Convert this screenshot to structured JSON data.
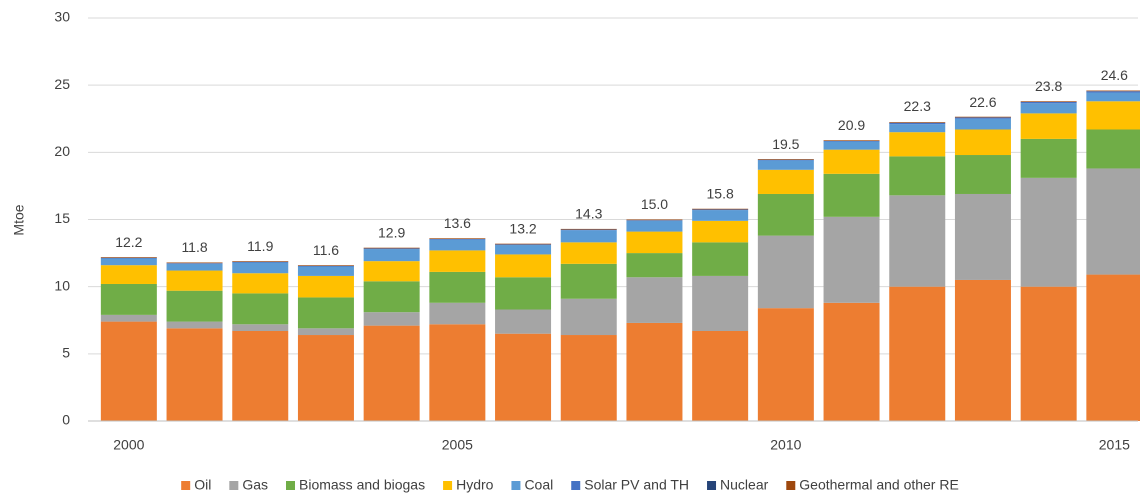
{
  "chart_data": {
    "type": "stacked_bar",
    "ylabel": "Mtoe",
    "categories": [
      "2000",
      null,
      null,
      null,
      null,
      "2005",
      null,
      null,
      null,
      null,
      "2010",
      null,
      null,
      null,
      null,
      "2015"
    ],
    "series": [
      {
        "name": "Oil",
        "color": "#ed7d31",
        "values": [
          7.4,
          6.9,
          6.7,
          6.4,
          7.1,
          7.2,
          6.5,
          6.4,
          7.3,
          6.7,
          8.4,
          8.8,
          10.0,
          10.5,
          10.0,
          10.9
        ]
      },
      {
        "name": "Gas",
        "color": "#a5a5a5",
        "values": [
          0.5,
          0.5,
          0.5,
          0.5,
          1.0,
          1.6,
          1.8,
          2.7,
          3.4,
          4.1,
          5.4,
          6.4,
          6.8,
          6.4,
          8.1,
          7.9
        ]
      },
      {
        "name": "Biomass and biogas",
        "color": "#70ad47",
        "values": [
          2.3,
          2.3,
          2.3,
          2.3,
          2.3,
          2.3,
          2.4,
          2.6,
          1.8,
          2.5,
          3.1,
          3.2,
          2.9,
          2.9,
          2.9,
          2.9
        ]
      },
      {
        "name": "Hydro",
        "color": "#ffc000",
        "values": [
          1.4,
          1.5,
          1.5,
          1.6,
          1.5,
          1.6,
          1.7,
          1.6,
          1.6,
          1.6,
          1.8,
          1.8,
          1.8,
          1.9,
          1.9,
          2.1
        ]
      },
      {
        "name": "Coal",
        "color": "#5b9bd5",
        "values": [
          0.5,
          0.5,
          0.8,
          0.7,
          0.9,
          0.8,
          0.7,
          0.9,
          0.8,
          0.8,
          0.7,
          0.6,
          0.6,
          0.8,
          0.75,
          0.65
        ]
      },
      {
        "name": "Solar PV and TH",
        "color": "#4472c4",
        "values": [
          0.05,
          0.05,
          0.05,
          0.05,
          0.05,
          0.05,
          0.05,
          0.05,
          0.05,
          0.05,
          0.05,
          0.05,
          0.1,
          0.1,
          0.1,
          0.1
        ]
      },
      {
        "name": "Nuclear",
        "color": "#264478",
        "values": [
          0,
          0,
          0,
          0,
          0,
          0,
          0,
          0,
          0,
          0,
          0,
          0,
          0,
          0,
          0,
          0
        ]
      },
      {
        "name": "Geothermal and other RE",
        "color": "#9e480e",
        "values": [
          0.05,
          0.05,
          0.05,
          0.05,
          0.05,
          0.05,
          0.05,
          0.05,
          0.05,
          0.05,
          0.05,
          0.05,
          0.05,
          0.05,
          0.05,
          0.05
        ]
      }
    ],
    "totals": [
      12.2,
      11.8,
      11.9,
      11.6,
      12.9,
      13.6,
      13.2,
      14.3,
      15.0,
      15.8,
      19.5,
      20.9,
      22.3,
      22.6,
      23.8,
      24.6
    ],
    "total_labels": [
      "12.2",
      "11.8",
      "11.9",
      "11.6",
      "12.9",
      "13.6",
      "13.2",
      "14.3",
      "15.0",
      "15.8",
      "19.5",
      "20.9",
      "22.3",
      "22.6",
      "23.8",
      "24.6"
    ],
    "ylim": [
      0,
      30
    ],
    "yticks": [
      0,
      5,
      10,
      15,
      20,
      25,
      30
    ],
    "grid": true,
    "legend": "bottom"
  }
}
